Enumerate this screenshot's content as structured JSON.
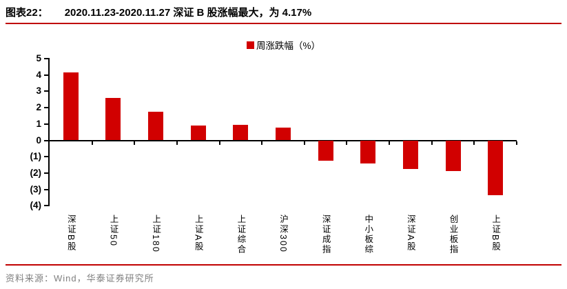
{
  "header": {
    "figure_label": "图表22：",
    "title": "2020.11.23-2020.11.27 深证 B 股涨幅最大，为 4.17%"
  },
  "legend": {
    "label": "周涨跌幅（%）"
  },
  "chart_data": {
    "type": "bar",
    "title": "2020.11.23-2020.11.27 深证 B 股涨幅最大，为 4.17%",
    "legend_entries": [
      "周涨跌幅（%）"
    ],
    "legend_position": "top-center",
    "categories": [
      "深证B股",
      "上证50",
      "上证180",
      "上证A股",
      "上证综合",
      "沪深300",
      "深证成指",
      "中小板综",
      "深证A股",
      "创业板指",
      "上证B股"
    ],
    "values": [
      4.17,
      2.58,
      1.74,
      0.92,
      0.94,
      0.76,
      -1.26,
      -1.4,
      -1.74,
      -1.89,
      -3.36
    ],
    "xlabel": "",
    "ylabel": "",
    "ylim": [
      -4,
      5
    ],
    "yticks": [
      5,
      4,
      3,
      2,
      1,
      0,
      -1,
      -2,
      -3,
      -4
    ],
    "ytick_labels": [
      "5",
      "4",
      "3",
      "2",
      "1",
      "0",
      "(1)",
      "(2)",
      "(3)",
      "(4)"
    ],
    "grid": false,
    "bar_color": "#d10000"
  },
  "footer": {
    "source": "资料来源：Wind，华泰证券研究所"
  },
  "colors": {
    "accent_rule_red": "#c00000",
    "bar_red": "#d10000",
    "source_gray": "#7f7f7f"
  }
}
